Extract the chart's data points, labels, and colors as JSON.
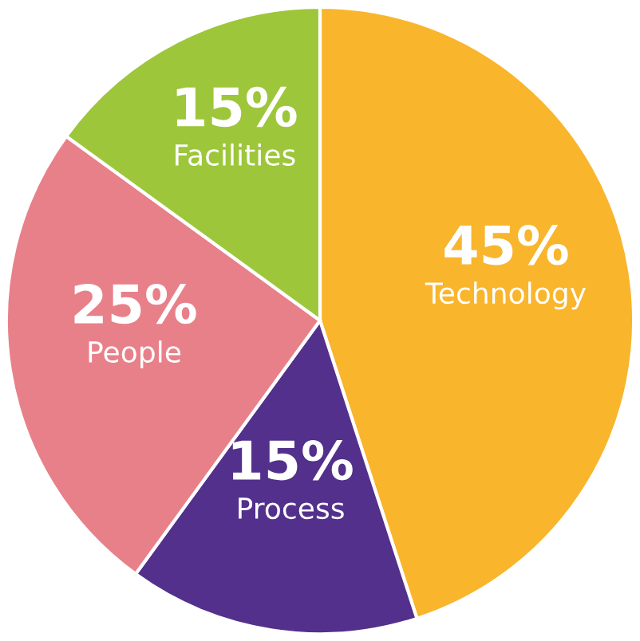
{
  "chart_data": {
    "type": "pie",
    "categories": [
      "Technology",
      "Process",
      "People",
      "Facilities"
    ],
    "values": [
      45,
      15,
      25,
      15
    ],
    "value_labels": [
      "45%",
      "15%",
      "25%",
      "15%"
    ],
    "colors": [
      "#f9b52c",
      "#52308c",
      "#e8808a",
      "#9dc63b"
    ]
  }
}
